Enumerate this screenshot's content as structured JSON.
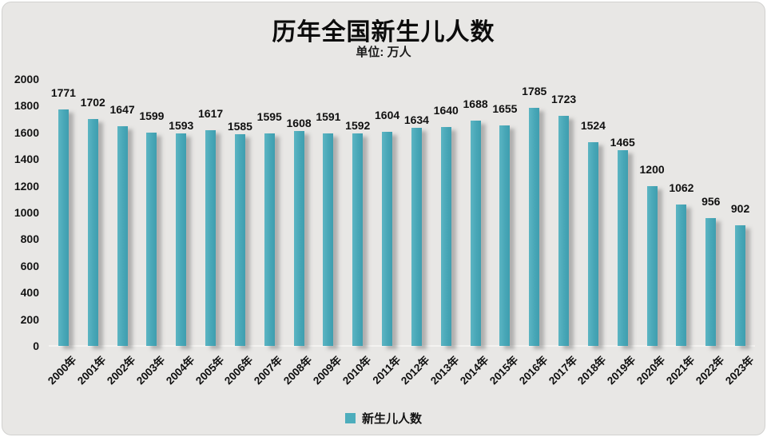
{
  "header": {
    "title": "历年全国新生儿人数",
    "subtitle": "单位: 万人"
  },
  "legend": {
    "label": "新生儿人数"
  },
  "colors": {
    "bar": "#4dadbc",
    "background": "#e8e7e5",
    "text": "#111111"
  },
  "chart_data": {
    "type": "bar",
    "title": "历年全国新生儿人数",
    "subtitle": "单位: 万人",
    "categories": [
      "2000年",
      "2001年",
      "2002年",
      "2003年",
      "2004年",
      "2005年",
      "2006年",
      "2007年",
      "2008年",
      "2009年",
      "2010年",
      "2011年",
      "2012年",
      "2013年",
      "2014年",
      "2015年",
      "2016年",
      "2017年",
      "2018年",
      "2019年",
      "2020年",
      "2021年",
      "2022年",
      "2023年"
    ],
    "series": [
      {
        "name": "新生儿人数",
        "values": [
          1771,
          1702,
          1647,
          1599,
          1593,
          1617,
          1585,
          1595,
          1608,
          1591,
          1592,
          1604,
          1634,
          1640,
          1688,
          1655,
          1785,
          1723,
          1524,
          1465,
          1200,
          1062,
          956,
          902
        ]
      }
    ],
    "xlabel": "",
    "ylabel": "",
    "ylim": [
      0,
      2000
    ],
    "y_tick_step": 200,
    "y_ticks": [
      0,
      200,
      400,
      600,
      800,
      1000,
      1200,
      1400,
      1600,
      1800,
      2000
    ],
    "grid": "off",
    "legend_position": "bottom",
    "bar_color": "#4dadbc",
    "value_labels": "outside-end",
    "label_low_indices": [
      4,
      6,
      8,
      10,
      12,
      19
    ]
  }
}
